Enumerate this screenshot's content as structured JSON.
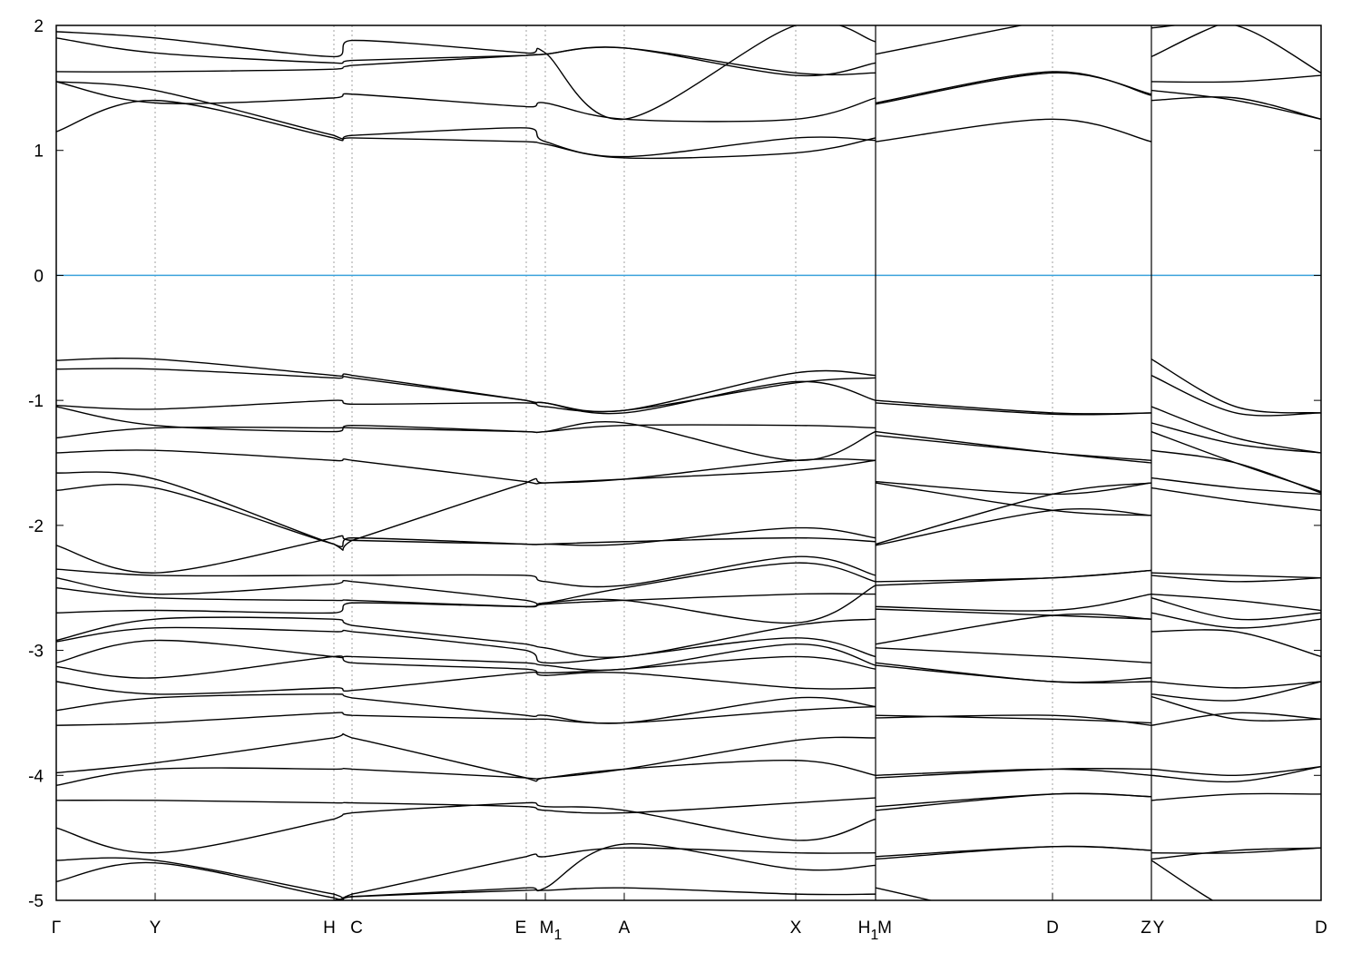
{
  "chart_data": {
    "type": "line",
    "title": "",
    "xlabel": "",
    "ylabel": "",
    "ylim": [
      -5,
      2
    ],
    "yticks": [
      2,
      1,
      0,
      -1,
      -2,
      -3,
      -4,
      -5
    ],
    "grid": "vertical dashed at high-symmetry points",
    "fermi_level": 0,
    "colors": {
      "bands": "#000000",
      "fermi": "#3ba3dc",
      "grid": "#a0a0a0"
    },
    "xtick_labels": [
      "Γ",
      "Y",
      "H",
      "C",
      "E",
      "M1",
      "A",
      "X",
      "H1",
      "M",
      "D",
      "Z",
      "Y",
      "D"
    ],
    "paths": [
      {
        "kpoints": [
          "Γ",
          "Y",
          "H",
          "C",
          "E",
          "M1",
          "A",
          "X",
          "H1"
        ],
        "bands": [
          [
            1.15,
            1.4,
            1.1,
            1.1,
            1.07,
            1.05,
            0.94,
            0.98,
            1.1
          ],
          [
            1.55,
            1.48,
            1.12,
            1.12,
            1.18,
            1.07,
            0.95,
            1.1,
            1.08
          ],
          [
            1.55,
            1.38,
            1.42,
            1.45,
            1.35,
            1.38,
            1.25,
            1.25,
            1.42
          ],
          [
            1.63,
            1.63,
            1.65,
            1.68,
            1.76,
            1.77,
            1.82,
            1.62,
            1.62
          ],
          [
            1.9,
            1.78,
            1.7,
            1.72,
            1.76,
            1.77,
            1.82,
            1.6,
            1.7
          ],
          [
            1.95,
            1.9,
            1.75,
            1.88,
            1.78,
            1.78,
            1.25,
            2.0,
            1.87
          ],
          [
            -0.68,
            -0.67,
            -0.8,
            -0.8,
            -1.0,
            -1.02,
            -1.08,
            -0.78,
            -0.8
          ],
          [
            -0.75,
            -0.75,
            -0.82,
            -0.82,
            -1.0,
            -1.02,
            -1.1,
            -0.85,
            -1.0
          ],
          [
            -1.04,
            -1.07,
            -1.0,
            -1.03,
            -1.02,
            -1.05,
            -1.08,
            -0.86,
            -0.82
          ],
          [
            -1.05,
            -1.2,
            -1.25,
            -1.2,
            -1.25,
            -1.25,
            -1.2,
            -1.2,
            -1.22
          ],
          [
            -1.3,
            -1.22,
            -1.22,
            -1.22,
            -1.25,
            -1.25,
            -1.18,
            -1.48,
            -1.25
          ],
          [
            -1.42,
            -1.4,
            -1.48,
            -1.48,
            -1.65,
            -1.66,
            -1.63,
            -1.48,
            -1.48
          ],
          [
            -1.58,
            -1.63,
            -2.15,
            -2.12,
            -1.66,
            -1.66,
            -1.63,
            -1.56,
            -1.48
          ],
          [
            -1.72,
            -1.7,
            -2.15,
            -2.1,
            -2.15,
            -2.15,
            -2.15,
            -2.02,
            -2.1
          ],
          [
            -2.16,
            -2.38,
            -2.1,
            -2.12,
            -2.15,
            -2.15,
            -2.13,
            -2.1,
            -2.13
          ],
          [
            -2.35,
            -2.4,
            -2.4,
            -2.4,
            -2.4,
            -2.45,
            -2.48,
            -2.25,
            -2.4
          ],
          [
            -2.42,
            -2.55,
            -2.47,
            -2.45,
            -2.6,
            -2.62,
            -2.5,
            -2.3,
            -2.45
          ],
          [
            -2.5,
            -2.58,
            -2.6,
            -2.6,
            -2.65,
            -2.63,
            -2.6,
            -2.55,
            -2.55
          ],
          [
            -2.7,
            -2.68,
            -2.7,
            -2.62,
            -2.65,
            -2.62,
            -2.6,
            -2.78,
            -2.48
          ],
          [
            -2.92,
            -2.75,
            -2.75,
            -2.8,
            -2.95,
            -2.98,
            -3.05,
            -2.8,
            -2.75
          ],
          [
            -2.93,
            -2.82,
            -2.85,
            -2.85,
            -3.0,
            -3.1,
            -3.05,
            -2.9,
            -3.05
          ],
          [
            -3.1,
            -2.92,
            -3.05,
            -3.05,
            -3.1,
            -3.12,
            -3.15,
            -2.95,
            -3.12
          ],
          [
            -3.13,
            -3.22,
            -3.05,
            -3.1,
            -3.15,
            -3.18,
            -3.15,
            -3.05,
            -3.15
          ],
          [
            -3.25,
            -3.35,
            -3.3,
            -3.32,
            -3.18,
            -3.2,
            -3.18,
            -3.3,
            -3.3
          ],
          [
            -3.48,
            -3.38,
            -3.35,
            -3.38,
            -3.52,
            -3.52,
            -3.58,
            -3.38,
            -3.45
          ],
          [
            -3.6,
            -3.58,
            -3.5,
            -3.52,
            -3.55,
            -3.55,
            -3.58,
            -3.48,
            -3.45
          ],
          [
            -3.98,
            -3.9,
            -3.7,
            -3.7,
            -4.02,
            -4.02,
            -3.95,
            -3.72,
            -3.7
          ],
          [
            -4.08,
            -3.95,
            -3.95,
            -3.95,
            -4.02,
            -4.02,
            -3.95,
            -3.88,
            -4.0
          ],
          [
            -4.2,
            -4.2,
            -4.22,
            -4.22,
            -4.25,
            -4.28,
            -4.3,
            -4.22,
            -4.18
          ],
          [
            -4.42,
            -4.62,
            -4.35,
            -4.3,
            -4.22,
            -4.25,
            -4.28,
            -4.52,
            -4.35
          ],
          [
            -4.68,
            -4.68,
            -4.95,
            -4.95,
            -4.65,
            -4.65,
            -4.58,
            -4.62,
            -4.62
          ],
          [
            -4.85,
            -4.7,
            -4.98,
            -4.97,
            -4.9,
            -4.9,
            -4.55,
            -4.75,
            -4.72
          ],
          [
            -5.1,
            -5.1,
            -5.0,
            -4.97,
            -4.92,
            -4.92,
            -4.9,
            -4.95,
            -4.95
          ]
        ]
      },
      {
        "kpoints": [
          "M",
          "D",
          "Z"
        ],
        "bands": [
          [
            1.07,
            1.25,
            1.07
          ],
          [
            1.37,
            1.62,
            1.45
          ],
          [
            1.38,
            1.63,
            1.44
          ],
          [
            1.77,
            2.05,
            2.2
          ],
          [
            -1.0,
            -1.1,
            -1.1
          ],
          [
            -1.02,
            -1.11,
            -1.1
          ],
          [
            -1.25,
            -1.42,
            -1.5
          ],
          [
            -1.28,
            -1.42,
            -1.48
          ],
          [
            -1.65,
            -1.75,
            -1.66
          ],
          [
            -1.66,
            -1.88,
            -1.92
          ],
          [
            -2.15,
            -1.75,
            -1.66
          ],
          [
            -2.16,
            -1.88,
            -1.92
          ],
          [
            -2.45,
            -2.42,
            -2.36
          ],
          [
            -2.48,
            -2.42,
            -2.36
          ],
          [
            -2.65,
            -2.68,
            -2.55
          ],
          [
            -2.67,
            -2.72,
            -2.75
          ],
          [
            -2.95,
            -2.72,
            -2.75
          ],
          [
            -2.98,
            -3.05,
            -3.1
          ],
          [
            -3.1,
            -3.25,
            -3.22
          ],
          [
            -3.12,
            -3.25,
            -3.25
          ],
          [
            -3.52,
            -3.55,
            -3.58
          ],
          [
            -3.54,
            -3.52,
            -3.6
          ],
          [
            -4.02,
            -3.95,
            -3.95
          ],
          [
            -4.0,
            -3.95,
            -4.0
          ],
          [
            -4.25,
            -4.15,
            -4.17
          ],
          [
            -4.28,
            -4.15,
            -4.17
          ],
          [
            -4.65,
            -4.57,
            -4.6
          ],
          [
            -4.67,
            -4.57,
            -4.6
          ],
          [
            -4.9,
            -5.2,
            -5.2
          ]
        ]
      },
      {
        "kpoints": [
          "Y",
          "",
          "D"
        ],
        "bands": [
          [
            1.4,
            1.42,
            1.25
          ],
          [
            1.48,
            1.4,
            1.25
          ],
          [
            1.55,
            1.55,
            1.6
          ],
          [
            1.75,
            2.05,
            2.1
          ],
          [
            1.98,
            2.0,
            1.62
          ],
          [
            -0.67,
            -1.05,
            -1.1
          ],
          [
            -0.8,
            -1.1,
            -1.1
          ],
          [
            -1.05,
            -1.3,
            -1.42
          ],
          [
            -1.18,
            -1.35,
            -1.42
          ],
          [
            -1.25,
            -1.5,
            -1.73
          ],
          [
            -1.4,
            -1.5,
            -1.74
          ],
          [
            -1.62,
            -1.7,
            -1.75
          ],
          [
            -1.7,
            -1.8,
            -1.88
          ],
          [
            -2.38,
            -2.4,
            -2.42
          ],
          [
            -2.4,
            -2.45,
            -2.42
          ],
          [
            -2.55,
            -2.6,
            -2.68
          ],
          [
            -2.58,
            -2.75,
            -2.7
          ],
          [
            -2.7,
            -2.82,
            -2.75
          ],
          [
            -2.85,
            -2.85,
            -3.05
          ],
          [
            -3.25,
            -3.3,
            -3.25
          ],
          [
            -3.35,
            -3.4,
            -3.25
          ],
          [
            -3.6,
            -3.5,
            -3.55
          ],
          [
            -3.37,
            -3.55,
            -3.55
          ],
          [
            -3.95,
            -4.0,
            -3.93
          ],
          [
            -4.0,
            -4.05,
            -3.93
          ],
          [
            -4.2,
            -4.15,
            -4.15
          ],
          [
            -4.62,
            -4.62,
            -4.58
          ],
          [
            -4.67,
            -4.6,
            -4.58
          ],
          [
            -4.68,
            -5.1,
            -5.3
          ]
        ]
      }
    ]
  }
}
